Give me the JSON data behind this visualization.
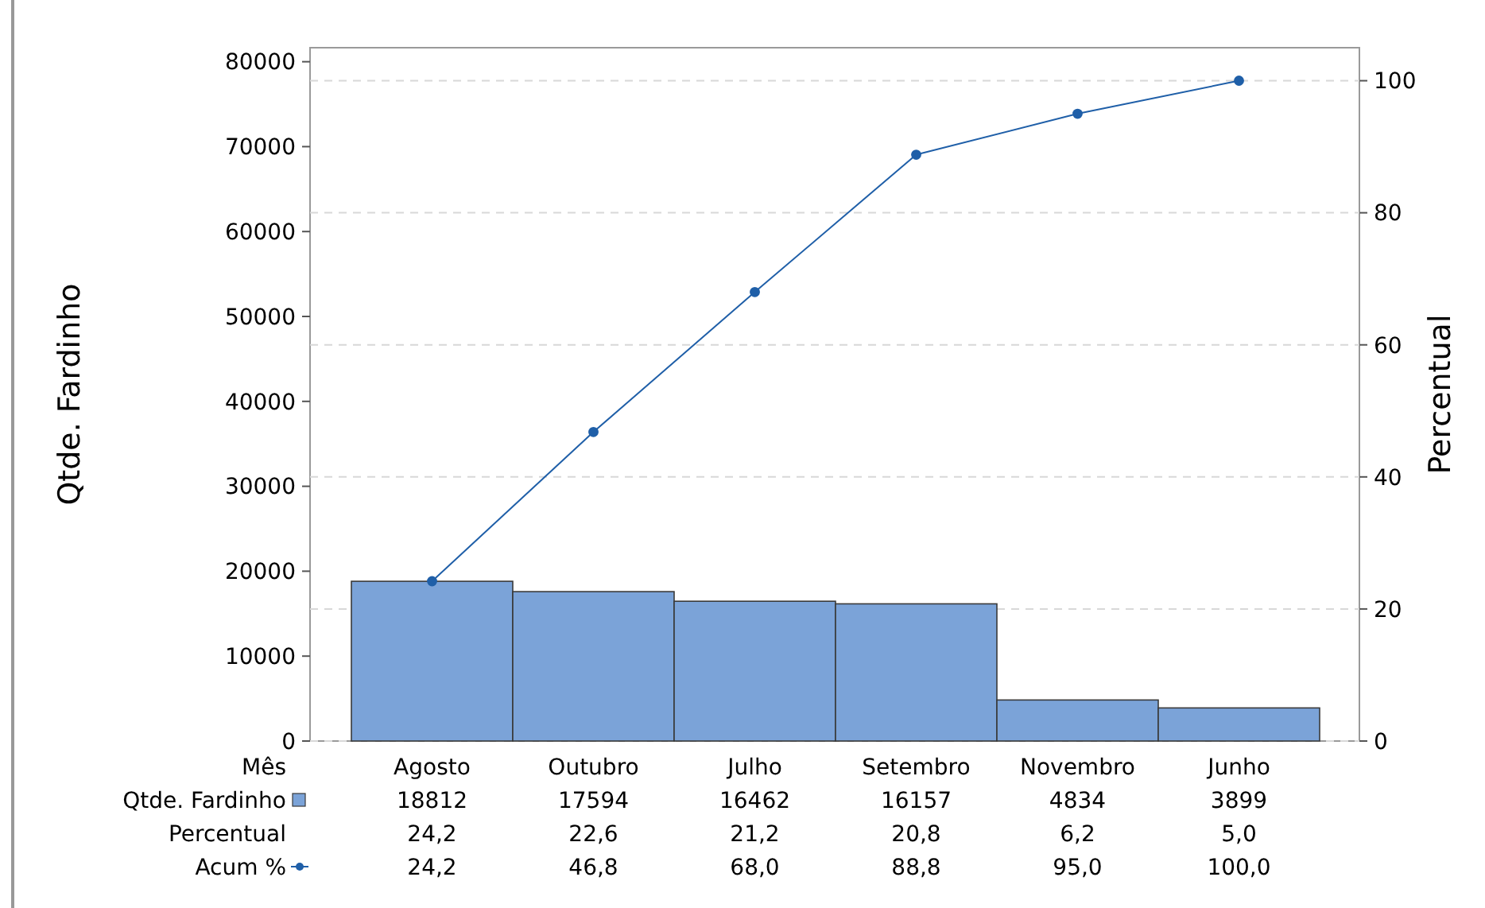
{
  "chart_data": {
    "type": "bar",
    "xlabel": "Mês",
    "ylabel": "Qtde. Fardinho",
    "y2label": "Percentual",
    "categories": [
      "Agosto",
      "Outubro",
      "Julho",
      "Setembro",
      "Novembro",
      "Junho"
    ],
    "series": [
      {
        "name": "Qtde. Fardinho",
        "color": "#7ba3d8",
        "values": [
          18812,
          17594,
          16462,
          16157,
          4834,
          3899
        ]
      },
      {
        "name": "Acum %",
        "type": "line",
        "axis": "y2",
        "color": "#1f5fa8",
        "values": [
          24.2,
          46.8,
          68.0,
          88.8,
          95.0,
          100.0
        ],
        "value_labels": [
          "24,2",
          "46,8",
          "68,0",
          "88,8",
          "95,0",
          "100,0"
        ]
      }
    ],
    "annotations": [
      "Percentual",
      "24,2",
      "22,6",
      "21,2",
      "20,8",
      "6,2",
      "5,0"
    ],
    "ylim": [
      0,
      81650
    ],
    "yticks": [
      0,
      10000,
      20000,
      30000,
      40000,
      50000,
      60000,
      70000,
      80000
    ],
    "y2lim": [
      0,
      105
    ],
    "y2ticks": [
      0,
      20,
      40,
      60,
      80,
      100
    ],
    "grid": "y",
    "legend": "bottom left",
    "marker": "circle",
    "line_style": "solid",
    "data_labels": true
  }
}
